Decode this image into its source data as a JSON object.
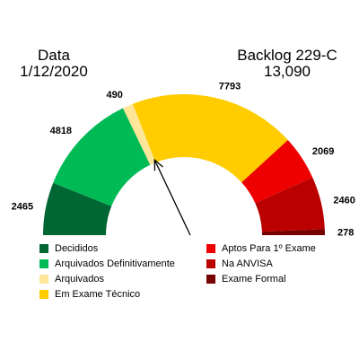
{
  "header": {
    "date_label": "Data",
    "date_value": "1/12/2020",
    "backlog_label": "Backlog 229-C",
    "backlog_value": "13,090"
  },
  "chart_data": {
    "type": "pie",
    "variant": "semicircle-gauge",
    "categories": [
      "Decididos",
      "Arquivados Definitivamente",
      "Arquivados",
      "Em Exame Técnico",
      "Aptos Para 1º Exame",
      "Na ANVISA",
      "Exame Formal"
    ],
    "values": [
      2465,
      4818,
      490,
      7793,
      2069,
      2460,
      278
    ],
    "colors": [
      "#006633",
      "#00BB55",
      "#FFE699",
      "#FFCC00",
      "#EE0000",
      "#BB0000",
      "#770000"
    ],
    "legend": {
      "left": [
        "Decididos",
        "Arquivados Definitivamente",
        "Arquivados",
        "Em Exame Técnico"
      ],
      "right": [
        "Aptos Para 1º Exame",
        "Na ANVISA",
        "Exame Formal"
      ]
    },
    "pointer_boundary_index": 2
  }
}
